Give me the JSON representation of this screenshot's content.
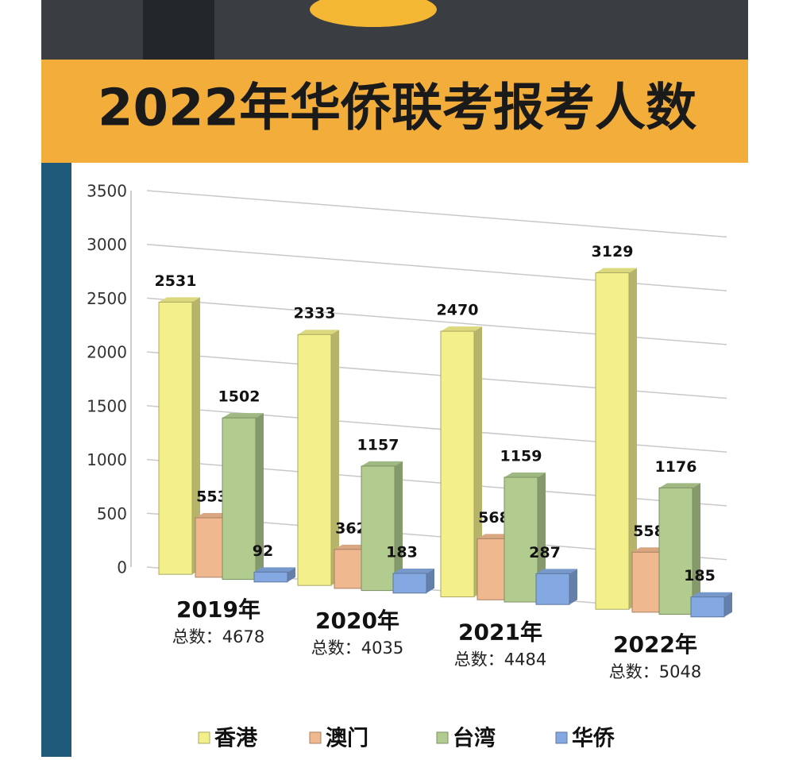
{
  "chart_data": {
    "type": "bar3d",
    "title": "2022年华侨联考报考人数",
    "categories": [
      "2019年",
      "2020年",
      "2021年",
      "2022年"
    ],
    "category_notes": [
      "总数：4678",
      "总数：4035",
      "总数：4484",
      "总数：5048"
    ],
    "series": [
      {
        "name": "香港",
        "color": "#f3f08c",
        "values": [
          2531,
          2333,
          2470,
          3129
        ]
      },
      {
        "name": "澳门",
        "color": "#f0b88e",
        "values": [
          553,
          362,
          568,
          558
        ]
      },
      {
        "name": "台湾",
        "color": "#b2cc90",
        "values": [
          1502,
          1157,
          1159,
          1176
        ]
      },
      {
        "name": "华侨",
        "color": "#84a9e2",
        "values": [
          92,
          183,
          287,
          185
        ]
      }
    ],
    "ylim": [
      0,
      3500
    ],
    "yticks": [
      0,
      500,
      1000,
      1500,
      2000,
      2500,
      3000,
      3500
    ],
    "grid": true
  }
}
